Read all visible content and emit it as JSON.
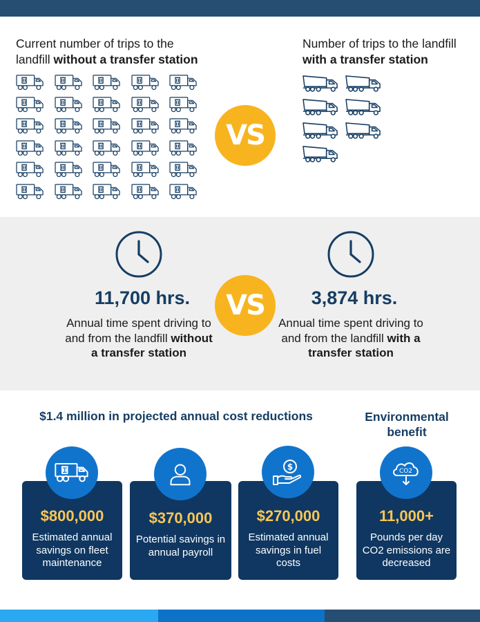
{
  "colors": {
    "navy": "#264d72",
    "dark_card": "#0f3761",
    "accent_yellow": "#f8b41f",
    "amount_yellow": "#fac656",
    "icon_blue": "#1174cc",
    "light_blue": "#2aa8f1",
    "heading_blue": "#163d63"
  },
  "trips": {
    "left": {
      "title_plain": "Current number of trips to the landfill ",
      "title_bold": "without a transfer station",
      "icon": "garbage-truck-icon",
      "count": 30
    },
    "right": {
      "title_plain": "Number of trips to the landfill ",
      "title_bold": "with a transfer station",
      "icon": "dump-truck-icon",
      "count": 7
    },
    "vs_label": "VS"
  },
  "time": {
    "vs_label": "VS",
    "left": {
      "icon": "clock-icon",
      "hours": "11,700 hrs.",
      "desc_plain": "Annual time spent driving to and from the landfill ",
      "desc_bold": "without a transfer station"
    },
    "right": {
      "icon": "clock-icon",
      "hours": "3,874 hrs.",
      "desc_plain": "Annual time spent driving to and from the landfill ",
      "desc_bold": "with a transfer station"
    }
  },
  "savings": {
    "title": "$1.4 million in projected annual cost reductions",
    "env_title": "Environmental benefit",
    "cards": [
      {
        "icon": "garbage-truck-icon",
        "amount": "$800,000",
        "desc": "Estimated annual savings on fleet maintenance"
      },
      {
        "icon": "person-icon",
        "amount": "$370,000",
        "desc": "Potential savings in annual payroll"
      },
      {
        "icon": "money-hand-icon",
        "amount": "$270,000",
        "desc": "Estimated annual savings in fuel costs"
      },
      {
        "icon": "co2-cloud-icon",
        "amount": "11,000+",
        "desc": "Pounds per day CO2 emissions are decreased",
        "icon_text": "CO2"
      }
    ]
  }
}
